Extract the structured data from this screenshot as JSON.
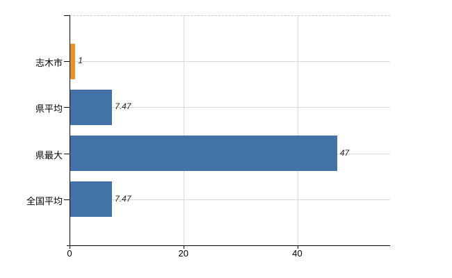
{
  "chart_data": {
    "type": "bar",
    "orientation": "horizontal",
    "title": "",
    "xlabel": "",
    "ylabel": "",
    "categories": [
      "志木市",
      "県平均",
      "県最大",
      "全国平均"
    ],
    "values": [
      1,
      7.47,
      47,
      7.47
    ],
    "value_labels": [
      "1",
      "7.47",
      "47",
      "7.47"
    ],
    "bar_colors": [
      "#e8912d",
      "#4272a8",
      "#4272a8",
      "#4272a8"
    ],
    "highlight_color": "#e8912d",
    "series_color": "#4272a8",
    "x_axis": {
      "ticks": [
        0,
        20,
        40
      ],
      "tick_labels": [
        "0",
        "20",
        "40"
      ],
      "range": [
        0,
        56.3
      ]
    },
    "grid": {
      "vertical_lines_at": [
        20,
        40
      ],
      "horizontal_line_per_category": true,
      "grid_color": "#d9d9d9",
      "top_border": "dashed"
    },
    "axis_color": "#000000",
    "background": "#ffffff",
    "legend": "none"
  }
}
